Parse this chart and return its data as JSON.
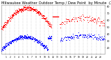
{
  "title": "Milwaukee Weather Outdoor Temp / Dew Point  by Minute  (24 Hours) (Alternate)",
  "title_fontsize": 3.8,
  "bg_color": "#ffffff",
  "plot_bg_color": "#ffffff",
  "text_color": "#000000",
  "grid_color": "#aaaaaa",
  "red_color": "#ff0000",
  "blue_color": "#0000ff",
  "xlim": [
    0,
    1440
  ],
  "ylim": [
    11,
    82
  ],
  "yticks": [
    20,
    30,
    40,
    50,
    60,
    70,
    80
  ],
  "xtick_labels": [
    "1",
    "2",
    "3",
    "4",
    "5",
    "6",
    "7",
    "8",
    "9",
    "10",
    "11",
    "12",
    "13",
    "14",
    "15",
    "16",
    "17",
    "18",
    "19",
    "20",
    "21",
    "22",
    "23"
  ],
  "xtick_positions": [
    60,
    120,
    180,
    240,
    300,
    360,
    420,
    480,
    540,
    600,
    660,
    720,
    780,
    840,
    900,
    960,
    1020,
    1080,
    1140,
    1200,
    1260,
    1320,
    1380
  ]
}
